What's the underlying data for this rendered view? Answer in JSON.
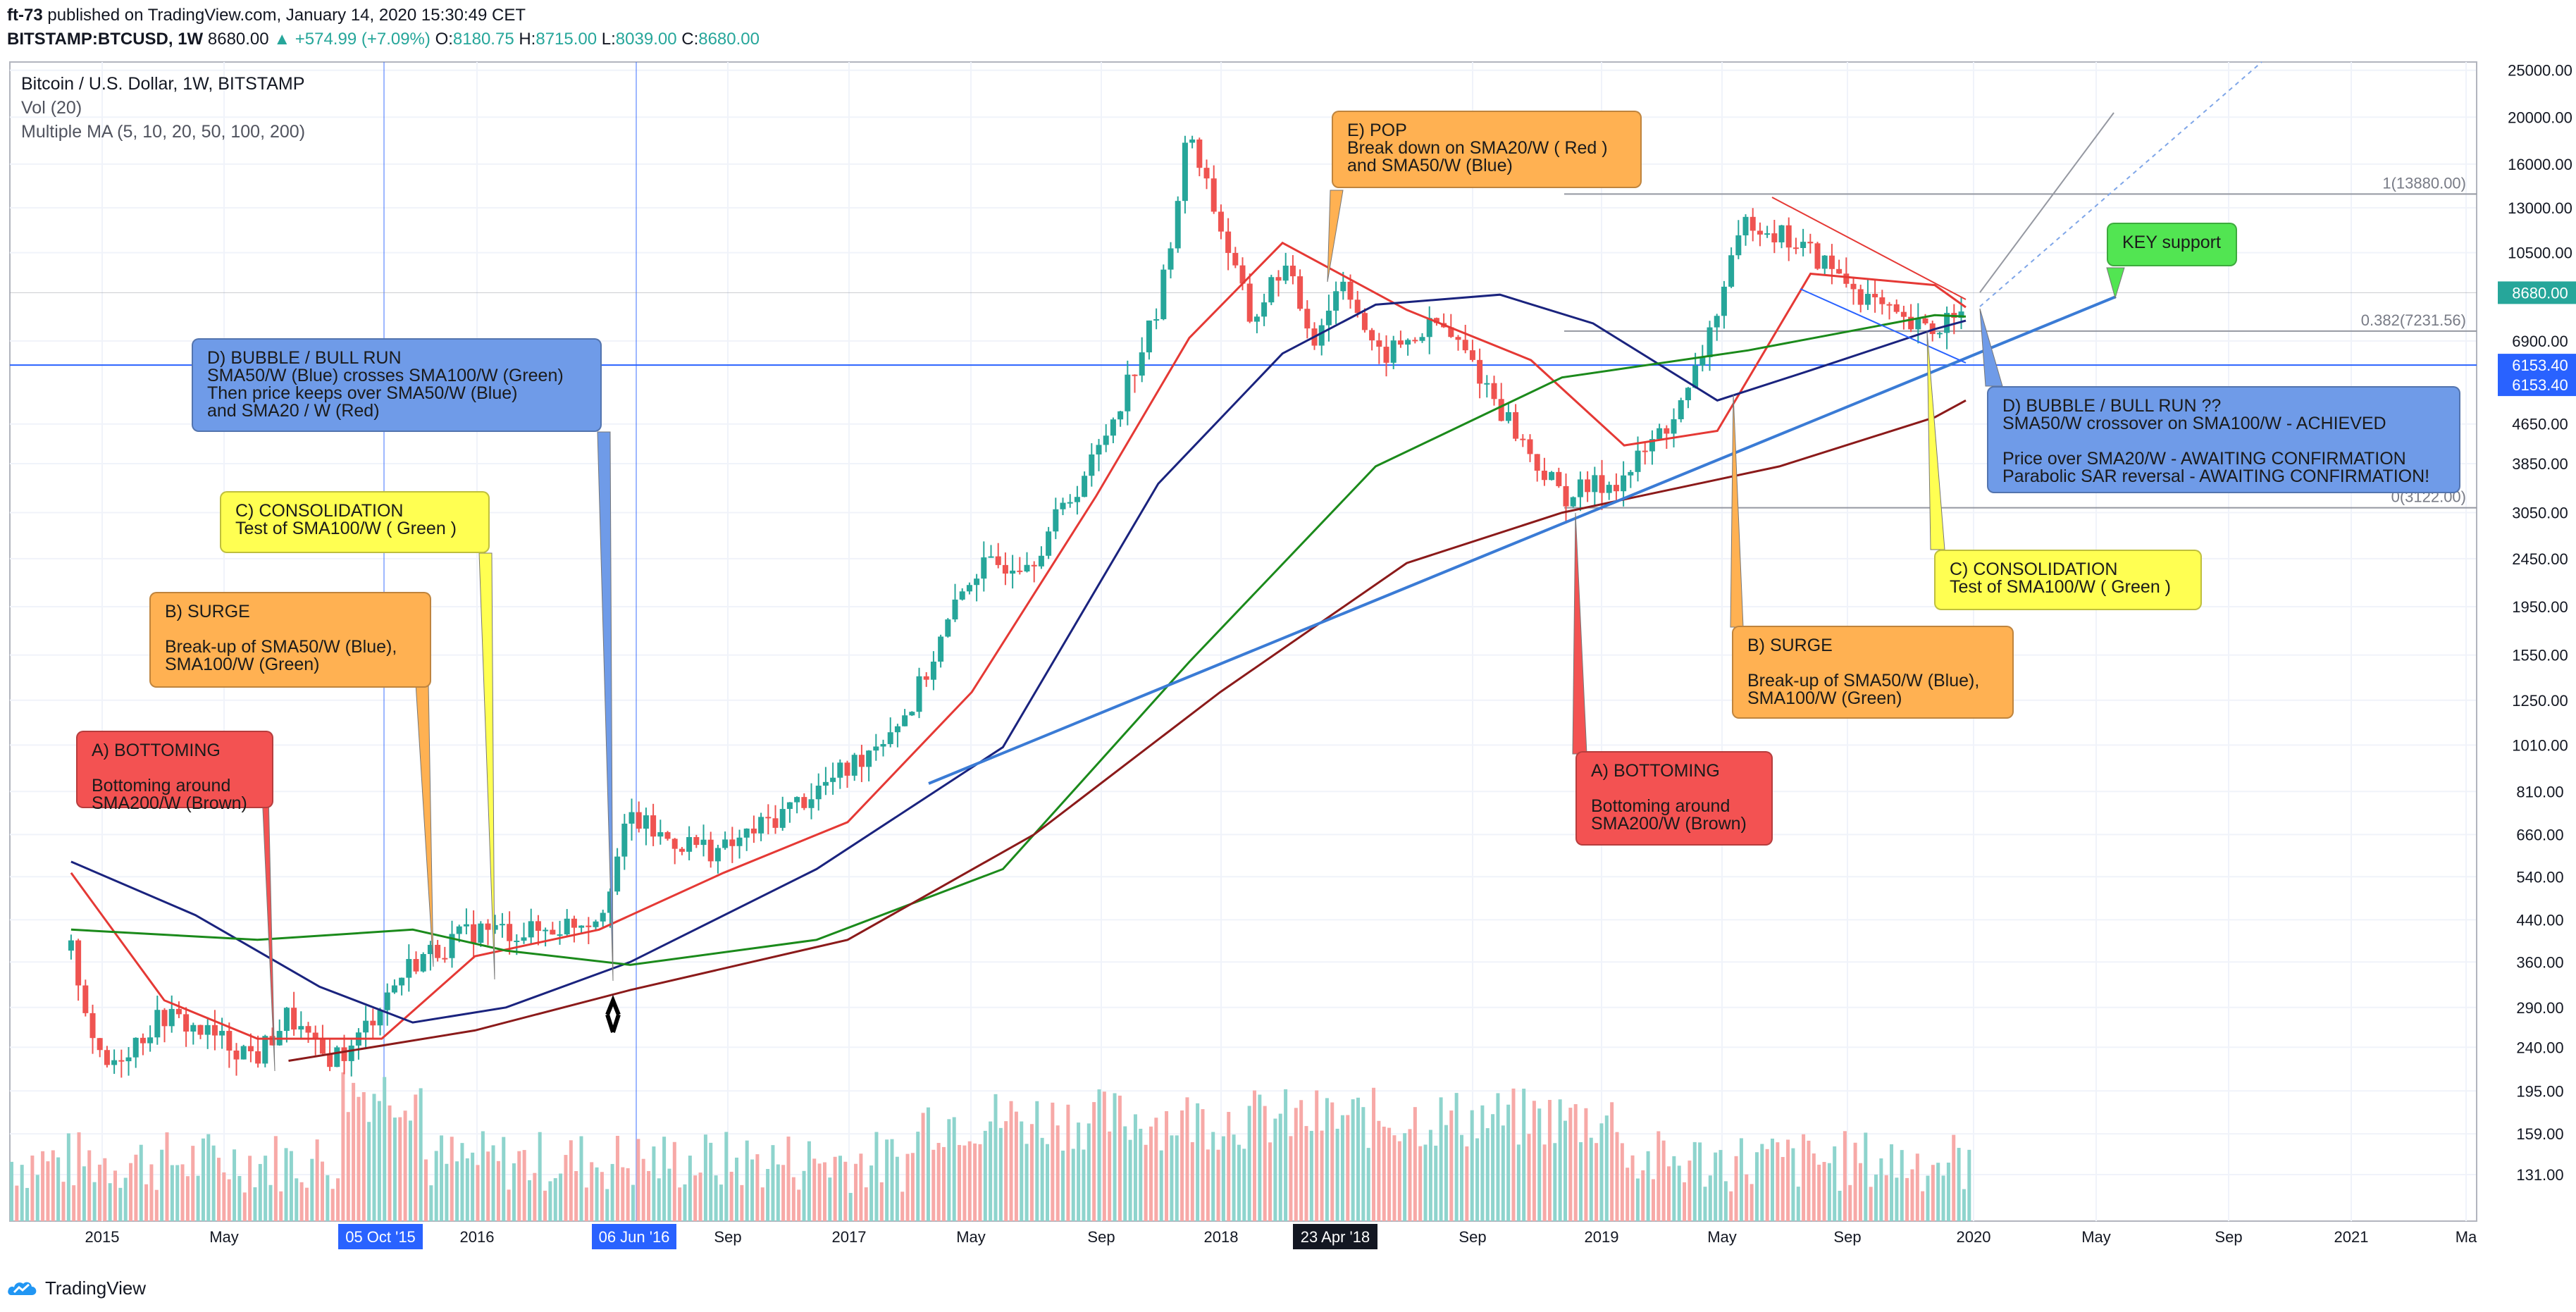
{
  "header": {
    "author": "ft-73",
    "published": "published on TradingView.com, January 14, 2020 15:30:49 CET",
    "symbol": "BITSTAMP:BTCUSD, 1W",
    "last": "8680.00",
    "change": "+574.99 (+7.09%)",
    "o": "8180.75",
    "h": "8715.00",
    "l": "8039.00",
    "c": "8680.00"
  },
  "legend": {
    "title": "Bitcoin / U.S. Dollar, 1W, BITSTAMP",
    "vol": "Vol (20)",
    "ma": "Multiple MA (5, 10, 20, 50, 100, 200)"
  },
  "footer": {
    "brand": "TradingView"
  },
  "colors": {
    "up": "#26a69a",
    "down": "#ef5350",
    "sma20": "#e53935",
    "sma50": "#1a237e",
    "sma100": "#1b8a1b",
    "sma200": "#8b1a1a",
    "trend": "#3a7bd5",
    "note_red": "#f35252",
    "note_orange": "#ffb152",
    "note_yellow": "#ffff52",
    "note_blue": "#6f9be8",
    "note_green": "#52e552"
  },
  "chart_data": {
    "type": "candlestick",
    "scale": "log",
    "title": "Bitcoin / U.S. Dollar, 1W, BITSTAMP",
    "ylim": [
      105,
      26000
    ],
    "y_ticks": [
      "25000.00",
      "20000.00",
      "16000.00",
      "13000.00",
      "10500.00",
      "8680.00",
      "6900.00",
      "6153.40",
      "4650.00",
      "3850.00",
      "3050.00",
      "2450.00",
      "1950.00",
      "1550.00",
      "1250.00",
      "1010.00",
      "810.00",
      "660.00",
      "540.00",
      "440.00",
      "360.00",
      "290.00",
      "240.00",
      "195.00",
      "159.00",
      "131.00"
    ],
    "x_ticks": [
      "2015",
      "May",
      "05 Oct '15",
      "2016",
      "06 Jun '16",
      "Sep",
      "2017",
      "May",
      "Sep",
      "2018",
      "23 Apr '18",
      "Sep",
      "2019",
      "May",
      "Sep",
      "2020",
      "May",
      "Sep",
      "2021",
      "Ma"
    ],
    "price_path": [
      [
        "2014-12",
        380
      ],
      [
        "2015-01",
        215
      ],
      [
        "2015-03",
        280
      ],
      [
        "2015-06",
        230
      ],
      [
        "2015-07",
        280
      ],
      [
        "2015-08",
        230
      ],
      [
        "2015-09",
        235
      ],
      [
        "2015-10",
        300
      ],
      [
        "2015-11",
        360
      ],
      [
        "2016-01",
        420
      ],
      [
        "2016-03",
        415
      ],
      [
        "2016-05",
        450
      ],
      [
        "2016-06",
        720
      ],
      [
        "2016-07",
        650
      ],
      [
        "2016-09",
        610
      ],
      [
        "2016-11",
        740
      ],
      [
        "2017-01",
        900
      ],
      [
        "2017-03",
        1200
      ],
      [
        "2017-05",
        2300
      ],
      [
        "2017-07",
        2500
      ],
      [
        "2017-09",
        4000
      ],
      [
        "2017-11",
        8000
      ],
      [
        "2017-12",
        19000
      ],
      [
        "2018-02",
        7500
      ],
      [
        "2018-03",
        10000
      ],
      [
        "2018-04",
        7000
      ],
      [
        "2018-05",
        9500
      ],
      [
        "2018-06",
        6300
      ],
      [
        "2018-08",
        7500
      ],
      [
        "2018-09",
        6400
      ],
      [
        "2018-11",
        4000
      ],
      [
        "2018-12",
        3300
      ],
      [
        "2019-02",
        3600
      ],
      [
        "2019-04",
        5200
      ],
      [
        "2019-06",
        12500
      ],
      [
        "2019-08",
        10500
      ],
      [
        "2019-10",
        8300
      ],
      [
        "2019-11",
        7400
      ],
      [
        "2019-12",
        7200
      ],
      [
        "2020-01",
        8680
      ]
    ],
    "series": [
      {
        "name": "SMA20/W",
        "color": "#e53935",
        "path": [
          [
            "2014-12",
            550
          ],
          [
            "2015-03",
            300
          ],
          [
            "2015-06",
            250
          ],
          [
            "2015-10",
            250
          ],
          [
            "2016-01",
            370
          ],
          [
            "2016-05",
            420
          ],
          [
            "2016-09",
            550
          ],
          [
            "2017-01",
            700
          ],
          [
            "2017-05",
            1300
          ],
          [
            "2017-09",
            3300
          ],
          [
            "2017-12",
            7000
          ],
          [
            "2018-03",
            11000
          ],
          [
            "2018-07",
            8000
          ],
          [
            "2018-11",
            6300
          ],
          [
            "2019-02",
            4200
          ],
          [
            "2019-05",
            4500
          ],
          [
            "2019-08",
            9500
          ],
          [
            "2019-12",
            9000
          ],
          [
            "2020-01",
            8100
          ]
        ]
      },
      {
        "name": "SMA50/W",
        "color": "#1a237e",
        "path": [
          [
            "2014-12",
            580
          ],
          [
            "2015-04",
            450
          ],
          [
            "2015-08",
            320
          ],
          [
            "2015-11",
            270
          ],
          [
            "2016-02",
            290
          ],
          [
            "2016-06",
            360
          ],
          [
            "2016-12",
            560
          ],
          [
            "2017-06",
            1000
          ],
          [
            "2017-11",
            3500
          ],
          [
            "2018-03",
            6500
          ],
          [
            "2018-06",
            8200
          ],
          [
            "2018-10",
            8600
          ],
          [
            "2019-01",
            7500
          ],
          [
            "2019-05",
            5200
          ],
          [
            "2019-08",
            6000
          ],
          [
            "2019-12",
            7300
          ],
          [
            "2020-01",
            7600
          ]
        ]
      },
      {
        "name": "SMA100/W",
        "color": "#1b8a1b",
        "path": [
          [
            "2014-12",
            420
          ],
          [
            "2015-06",
            400
          ],
          [
            "2015-11",
            420
          ],
          [
            "2016-02",
            380
          ],
          [
            "2016-06",
            355
          ],
          [
            "2016-12",
            400
          ],
          [
            "2017-06",
            560
          ],
          [
            "2017-12",
            1500
          ],
          [
            "2018-06",
            3800
          ],
          [
            "2018-12",
            5800
          ],
          [
            "2019-06",
            6600
          ],
          [
            "2019-12",
            7800
          ],
          [
            "2020-01",
            7750
          ]
        ]
      },
      {
        "name": "SMA200/W",
        "color": "#8b1a1a",
        "path": [
          [
            "2015-07",
            225
          ],
          [
            "2016-01",
            260
          ],
          [
            "2016-06",
            315
          ],
          [
            "2017-01",
            400
          ],
          [
            "2017-07",
            660
          ],
          [
            "2018-01",
            1300
          ],
          [
            "2018-07",
            2400
          ],
          [
            "2018-12",
            3050
          ],
          [
            "2019-07",
            3800
          ],
          [
            "2019-12",
            4800
          ],
          [
            "2020-01",
            5200
          ]
        ]
      }
    ],
    "fib_levels": [
      {
        "label": "1(13880.00)",
        "value": 13880
      },
      {
        "label": "0.382(7231.56)",
        "value": 7231.56
      },
      {
        "label": "0(3122.00)",
        "value": 3122
      }
    ],
    "annotations": [
      {
        "id": "a1",
        "label": "A) BOTTOMING\n\nBottoming around\nSMA200/W (Brown)",
        "color": "#f35252"
      },
      {
        "id": "b1",
        "label": "B) SURGE\n\nBreak-up of SMA50/W (Blue),\nSMA100/W (Green)",
        "color": "#ffb152"
      },
      {
        "id": "c1",
        "label": "C) CONSOLIDATION\nTest of SMA100/W ( Green )",
        "color": "#ffff52"
      },
      {
        "id": "d1",
        "label": "D) BUBBLE / BULL RUN\nSMA50/W (Blue) crosses SMA100/W (Green)\nThen price keeps over SMA50/W (Blue)\nand SMA20 / W (Red)",
        "color": "#6f9be8"
      },
      {
        "id": "e1",
        "label": "E) POP\nBreak down on SMA20/W ( Red )\nand SMA50/W (Blue)",
        "color": "#ffb152"
      },
      {
        "id": "key",
        "label": "KEY support",
        "color": "#52e552"
      },
      {
        "id": "d2",
        "label": "D) BUBBLE / BULL RUN ??\nSMA50/W crossover on SMA100/W - ACHIEVED\n\nPrice over SMA20/W - AWAITING CONFIRMATION\nParabolic SAR reversal - AWAITING CONFIRMATION!",
        "color": "#6f9be8"
      },
      {
        "id": "c2",
        "label": "C) CONSOLIDATION\nTest of SMA100/W ( Green )",
        "color": "#ffff52"
      },
      {
        "id": "b2",
        "label": "B) SURGE\n\nBreak-up of SMA50/W (Blue),\nSMA100/W (Green)",
        "color": "#ffb152"
      },
      {
        "id": "a2",
        "label": "A) BOTTOMING\n\nBottoming around\nSMA200/W (Brown)",
        "color": "#f35252"
      }
    ]
  }
}
